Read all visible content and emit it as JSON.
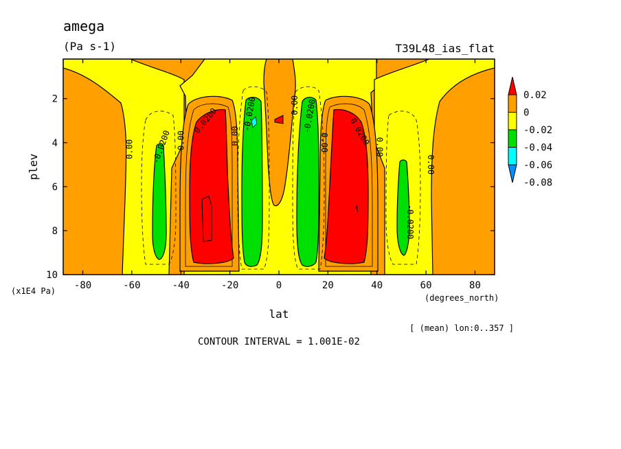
{
  "chart_data": {
    "type": "heatmap",
    "title": "amega",
    "units": "(Pa s-1)",
    "run_label": "T39L48_ias_flat",
    "xlabel": "lat",
    "x_units": "(degrees_north)",
    "ylabel": "plev",
    "y_units": "(x1E4 Pa)",
    "xlim": [
      -88,
      88
    ],
    "ylim": [
      10,
      0.2
    ],
    "x_ticks": [
      -80,
      -60,
      -40,
      -20,
      0,
      20,
      40,
      60,
      80
    ],
    "y_ticks": [
      2,
      4,
      6,
      8,
      10
    ],
    "averaging_note": "[ (mean) lon:0..357 ]",
    "contour_interval_text": "CONTOUR INTERVAL = 1.001E-02",
    "colorbar": {
      "levels": [
        "0.02",
        "0",
        "-0.02",
        "-0.04",
        "-0.06",
        "-0.08"
      ],
      "colors": [
        "#ff0000",
        "#ffa000",
        "#ffff00",
        "#00e000",
        "#00ffff",
        "#0090ff"
      ]
    },
    "regions": [
      {
        "name": "positive cell",
        "value_min": 0.02,
        "lat_center": -30,
        "plev_range": [
          2.5,
          9.5
        ]
      },
      {
        "name": "positive cell",
        "value_min": 0.02,
        "lat_center": 30,
        "plev_range": [
          2.5,
          9.5
        ]
      },
      {
        "name": "negative cell",
        "value_max": -0.02,
        "lat_center": -12,
        "plev_range": [
          2,
          9.5
        ]
      },
      {
        "name": "negative cell",
        "value_max": -0.02,
        "lat_center": 12,
        "plev_range": [
          2,
          9.5
        ]
      },
      {
        "name": "negative cell",
        "value_max": -0.02,
        "lat_center": -50,
        "plev_range": [
          4,
          9.3
        ]
      },
      {
        "name": "negative cell",
        "value_max": -0.02,
        "lat_center": 50,
        "plev_range": [
          4.8,
          9.1
        ]
      }
    ],
    "contour_labels": [
      "0.00",
      "-0.0200",
      "0.00",
      "0.0200",
      "0.00",
      "-0.0200",
      "0.00",
      "-0.0200",
      "0.00",
      "0.0200",
      "0.00",
      "-0.0200",
      "0.00"
    ]
  }
}
